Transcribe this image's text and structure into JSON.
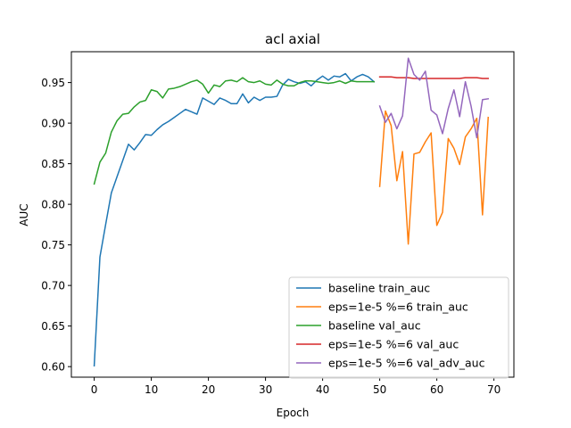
{
  "chart_data": {
    "type": "line",
    "title": "acl axial",
    "xlabel": "Epoch",
    "ylabel": "AUC",
    "xlim": [
      -4,
      73.5
    ],
    "ylim": [
      0.587,
      0.988
    ],
    "xticks": [
      "0",
      "10",
      "20",
      "30",
      "40",
      "50",
      "60",
      "70"
    ],
    "yticks": [
      "0.60",
      "0.65",
      "0.70",
      "0.75",
      "0.80",
      "0.85",
      "0.90",
      "0.95"
    ],
    "grid": false,
    "legend_position": "lower right",
    "series": [
      {
        "name": "baseline train_auc",
        "color": "#1f77b4",
        "x": [
          0,
          1,
          2,
          3,
          4,
          5,
          6,
          7,
          8,
          9,
          10,
          11,
          12,
          13,
          14,
          15,
          16,
          17,
          18,
          19,
          20,
          21,
          22,
          23,
          24,
          25,
          26,
          27,
          28,
          29,
          30,
          31,
          32,
          33,
          34,
          35,
          36,
          37,
          38,
          39,
          40,
          41,
          42,
          43,
          44,
          45,
          46,
          47,
          48,
          49
        ],
        "y": [
          0.601,
          0.735,
          0.775,
          0.814,
          0.834,
          0.854,
          0.874,
          0.867,
          0.876,
          0.886,
          0.885,
          0.892,
          0.898,
          0.902,
          0.907,
          0.912,
          0.917,
          0.914,
          0.911,
          0.931,
          0.927,
          0.923,
          0.931,
          0.928,
          0.924,
          0.924,
          0.936,
          0.925,
          0.932,
          0.928,
          0.932,
          0.932,
          0.933,
          0.947,
          0.954,
          0.951,
          0.949,
          0.951,
          0.946,
          0.953,
          0.958,
          0.953,
          0.958,
          0.957,
          0.961,
          0.952,
          0.957,
          0.96,
          0.957,
          0.951
        ]
      },
      {
        "name": "eps=1e-5 %=6 train_auc",
        "color": "#ff7f0e",
        "x": [
          50,
          51,
          52,
          53,
          54,
          55,
          56,
          57,
          58,
          59,
          60,
          61,
          62,
          63,
          64,
          65,
          66,
          67,
          68,
          69
        ],
        "y": [
          0.822,
          0.915,
          0.897,
          0.829,
          0.865,
          0.751,
          0.862,
          0.864,
          0.877,
          0.888,
          0.774,
          0.79,
          0.881,
          0.869,
          0.849,
          0.883,
          0.893,
          0.906,
          0.787,
          0.907
        ]
      },
      {
        "name": "baseline val_auc",
        "color": "#2ca02c",
        "x": [
          0,
          1,
          2,
          3,
          4,
          5,
          6,
          7,
          8,
          9,
          10,
          11,
          12,
          13,
          14,
          15,
          16,
          17,
          18,
          19,
          20,
          21,
          22,
          23,
          24,
          25,
          26,
          27,
          28,
          29,
          30,
          31,
          32,
          33,
          34,
          35,
          36,
          37,
          38,
          39,
          40,
          41,
          42,
          43,
          44,
          45,
          46,
          47,
          48,
          49
        ],
        "y": [
          0.825,
          0.852,
          0.863,
          0.889,
          0.903,
          0.911,
          0.912,
          0.92,
          0.926,
          0.928,
          0.941,
          0.939,
          0.931,
          0.942,
          0.943,
          0.945,
          0.948,
          0.951,
          0.953,
          0.948,
          0.937,
          0.947,
          0.945,
          0.952,
          0.953,
          0.951,
          0.956,
          0.951,
          0.95,
          0.952,
          0.948,
          0.947,
          0.953,
          0.948,
          0.946,
          0.946,
          0.95,
          0.952,
          0.952,
          0.951,
          0.95,
          0.949,
          0.95,
          0.952,
          0.949,
          0.952,
          0.951,
          0.951,
          0.951,
          0.951
        ]
      },
      {
        "name": "eps=1e-5 %=6 val_auc",
        "color": "#d62728",
        "x": [
          50,
          51,
          52,
          53,
          54,
          55,
          56,
          57,
          58,
          59,
          60,
          61,
          62,
          63,
          64,
          65,
          66,
          67,
          68,
          69
        ],
        "y": [
          0.957,
          0.957,
          0.957,
          0.956,
          0.956,
          0.956,
          0.955,
          0.955,
          0.955,
          0.955,
          0.955,
          0.955,
          0.955,
          0.955,
          0.955,
          0.956,
          0.956,
          0.956,
          0.955,
          0.955
        ]
      },
      {
        "name": "eps=1e-5 %=6 val_adv_auc",
        "color": "#9467bd",
        "x": [
          50,
          51,
          52,
          53,
          54,
          55,
          56,
          57,
          58,
          59,
          60,
          61,
          62,
          63,
          64,
          65,
          66,
          67,
          68,
          69
        ],
        "y": [
          0.921,
          0.901,
          0.912,
          0.893,
          0.909,
          0.98,
          0.96,
          0.953,
          0.964,
          0.916,
          0.91,
          0.887,
          0.918,
          0.941,
          0.908,
          0.951,
          0.921,
          0.882,
          0.929,
          0.93
        ]
      }
    ]
  }
}
